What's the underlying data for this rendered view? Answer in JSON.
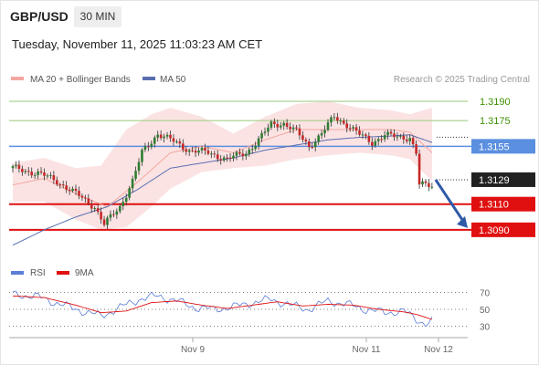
{
  "header": {
    "symbol": "GBP/USD",
    "timeframe": "30 MIN",
    "timestamp": "Tuesday, November 11, 2025 11:03:23 AM CET"
  },
  "legend": {
    "ma20": "MA 20 + Bollinger Bands",
    "ma50": "MA 50",
    "credit": "Research © 2025 Trading Central",
    "rsi": "RSI",
    "ma9": "9MA"
  },
  "colors": {
    "up": "#2f7d32",
    "down": "#c62828",
    "band": "#fbe3e3",
    "ma20": "#f4a7a0",
    "ma50": "#5a6fb0",
    "resistance": "#a6cf86",
    "pivot": "#5b8fe0",
    "support": "#e01010",
    "arrow": "#2f5aa8",
    "rsi": "#5b7ed6",
    "rsi_ma": "#e01010"
  },
  "chart_data": [
    {
      "type": "candlestick",
      "title": "GBP/USD",
      "timeframe": "30 MIN",
      "x_ticks": [
        "Nov 9",
        "Nov 11",
        "Nov 12"
      ],
      "ylim": [
        1.307,
        1.32
      ],
      "levels": [
        {
          "value": 1.319,
          "label": "1.3190",
          "kind": "resistance"
        },
        {
          "value": 1.3175,
          "label": "1.3175",
          "kind": "resistance"
        },
        {
          "value": 1.3155,
          "label": "1.3155",
          "kind": "pivot"
        },
        {
          "value": 1.3129,
          "label": "1.3129",
          "kind": "last"
        },
        {
          "value": 1.311,
          "label": "1.3110",
          "kind": "support"
        },
        {
          "value": 1.309,
          "label": "1.3090",
          "kind": "support"
        }
      ],
      "anchors": [
        [
          0,
          1.3138
        ],
        [
          8,
          1.3134
        ],
        [
          14,
          1.3128
        ],
        [
          20,
          1.3118
        ],
        [
          26,
          1.3108
        ],
        [
          29,
          1.3094
        ],
        [
          34,
          1.3108
        ],
        [
          38,
          1.3128
        ],
        [
          41,
          1.315
        ],
        [
          46,
          1.3165
        ],
        [
          50,
          1.316
        ],
        [
          56,
          1.3152
        ],
        [
          62,
          1.315
        ],
        [
          68,
          1.3145
        ],
        [
          74,
          1.315
        ],
        [
          78,
          1.316
        ],
        [
          82,
          1.3172
        ],
        [
          86,
          1.3173
        ],
        [
          90,
          1.3166
        ],
        [
          94,
          1.3155
        ],
        [
          98,
          1.3165
        ],
        [
          102,
          1.3178
        ],
        [
          106,
          1.3172
        ],
        [
          110,
          1.3164
        ],
        [
          114,
          1.3158
        ],
        [
          118,
          1.3164
        ],
        [
          122,
          1.3162
        ],
        [
          126,
          1.3162
        ],
        [
          128,
          1.315
        ],
        [
          129,
          1.3125
        ],
        [
          133,
          1.3124
        ]
      ],
      "ma20": [
        [
          0,
          1.3125
        ],
        [
          10,
          1.313
        ],
        [
          20,
          1.3118
        ],
        [
          30,
          1.3108
        ],
        [
          40,
          1.3128
        ],
        [
          50,
          1.315
        ],
        [
          60,
          1.3155
        ],
        [
          70,
          1.315
        ],
        [
          80,
          1.316
        ],
        [
          90,
          1.3168
        ],
        [
          100,
          1.3168
        ],
        [
          110,
          1.3168
        ],
        [
          120,
          1.3168
        ],
        [
          126,
          1.3166
        ],
        [
          133,
          1.315
        ]
      ],
      "ma50": [
        [
          0,
          1.3078
        ],
        [
          10,
          1.309
        ],
        [
          20,
          1.31
        ],
        [
          30,
          1.3108
        ],
        [
          40,
          1.3122
        ],
        [
          50,
          1.3138
        ],
        [
          60,
          1.3142
        ],
        [
          70,
          1.3146
        ],
        [
          80,
          1.3152
        ],
        [
          90,
          1.3156
        ],
        [
          100,
          1.316
        ],
        [
          110,
          1.3162
        ],
        [
          120,
          1.3163
        ],
        [
          126,
          1.3164
        ],
        [
          133,
          1.3158
        ]
      ],
      "band_upper": [
        [
          0,
          1.3142
        ],
        [
          10,
          1.3146
        ],
        [
          20,
          1.3138
        ],
        [
          28,
          1.314
        ],
        [
          36,
          1.3168
        ],
        [
          44,
          1.318
        ],
        [
          50,
          1.3185
        ],
        [
          60,
          1.3178
        ],
        [
          70,
          1.3165
        ],
        [
          80,
          1.3178
        ],
        [
          90,
          1.3188
        ],
        [
          100,
          1.319
        ],
        [
          110,
          1.3185
        ],
        [
          120,
          1.3183
        ],
        [
          126,
          1.318
        ],
        [
          133,
          1.3185
        ]
      ],
      "band_lower": [
        [
          0,
          1.3112
        ],
        [
          10,
          1.3112
        ],
        [
          20,
          1.3098
        ],
        [
          28,
          1.309
        ],
        [
          36,
          1.3092
        ],
        [
          44,
          1.3108
        ],
        [
          50,
          1.3122
        ],
        [
          60,
          1.3135
        ],
        [
          70,
          1.3138
        ],
        [
          80,
          1.314
        ],
        [
          90,
          1.3145
        ],
        [
          100,
          1.3148
        ],
        [
          110,
          1.315
        ],
        [
          120,
          1.3148
        ],
        [
          126,
          1.3145
        ],
        [
          133,
          1.3128
        ]
      ]
    },
    {
      "type": "line",
      "title": "RSI",
      "ylim": [
        25,
        75
      ],
      "y_ticks": [
        30,
        50,
        70
      ],
      "series": [
        {
          "name": "RSI",
          "values": [
            [
              0,
              68
            ],
            [
              8,
              65
            ],
            [
              16,
              55
            ],
            [
              22,
              48
            ],
            [
              28,
              42
            ],
            [
              34,
              52
            ],
            [
              40,
              62
            ],
            [
              46,
              66
            ],
            [
              52,
              60
            ],
            [
              58,
              52
            ],
            [
              64,
              50
            ],
            [
              70,
              53
            ],
            [
              76,
              58
            ],
            [
              82,
              62
            ],
            [
              88,
              55
            ],
            [
              94,
              50
            ],
            [
              100,
              60
            ],
            [
              106,
              56
            ],
            [
              112,
              50
            ],
            [
              118,
              46
            ],
            [
              124,
              48
            ],
            [
              128,
              38
            ],
            [
              131,
              33
            ],
            [
              133,
              36
            ]
          ]
        },
        {
          "name": "9MA",
          "values": [
            [
              0,
              66
            ],
            [
              10,
              64
            ],
            [
              20,
              55
            ],
            [
              28,
              46
            ],
            [
              36,
              48
            ],
            [
              44,
              58
            ],
            [
              52,
              60
            ],
            [
              60,
              55
            ],
            [
              68,
              51
            ],
            [
              76,
              55
            ],
            [
              84,
              59
            ],
            [
              92,
              54
            ],
            [
              100,
              56
            ],
            [
              108,
              55
            ],
            [
              116,
              50
            ],
            [
              124,
              47
            ],
            [
              128,
              44
            ],
            [
              133,
              38
            ]
          ]
        }
      ]
    }
  ]
}
